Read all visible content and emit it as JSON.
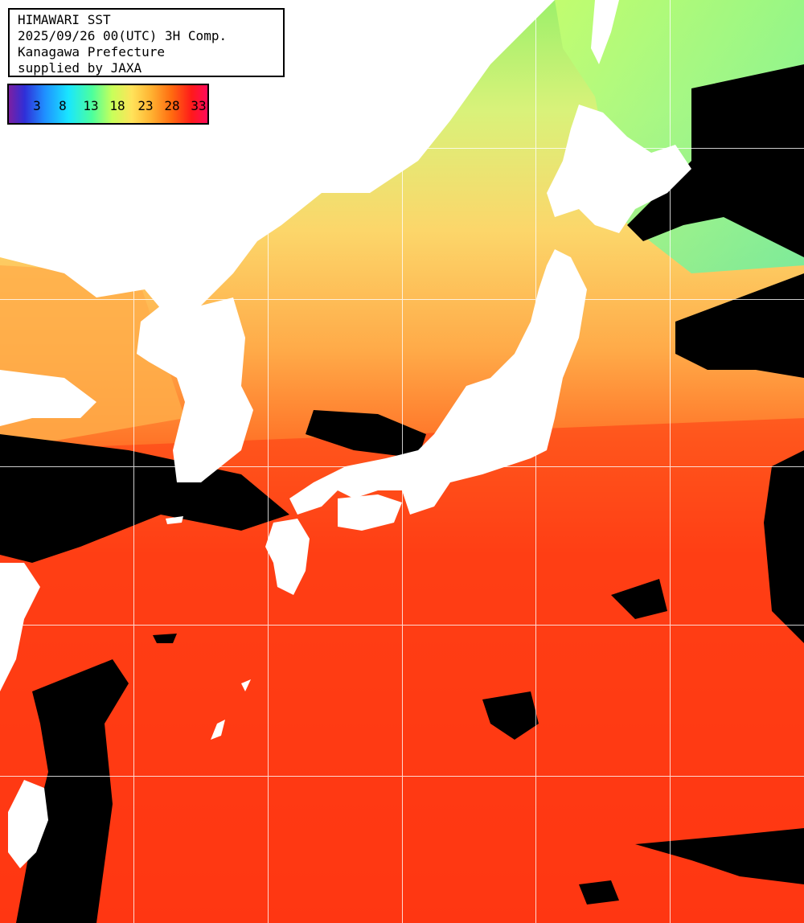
{
  "header": {
    "line1": "HIMAWARI SST",
    "line2": "2025/09/26 00(UTC) 3H Comp.",
    "line3": "Kanagawa Prefecture",
    "line4": "supplied by JAXA"
  },
  "colorbar": {
    "ticks": [
      "3",
      "8",
      "13",
      "18",
      "23",
      "28",
      "33"
    ]
  }
}
